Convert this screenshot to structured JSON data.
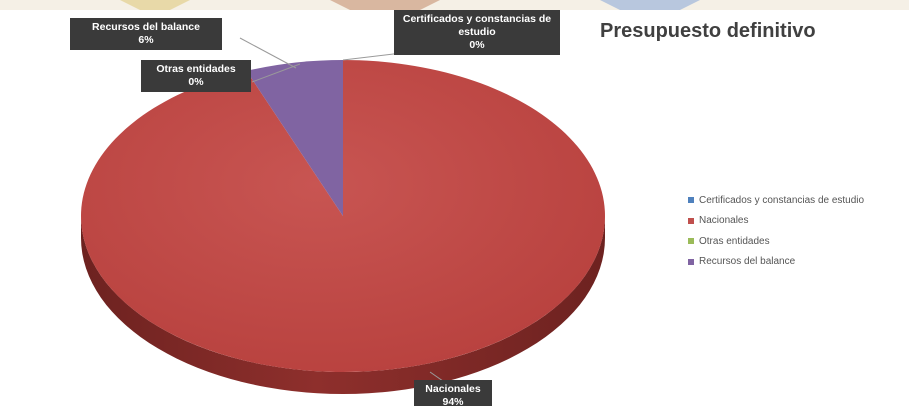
{
  "chart_data": {
    "type": "pie",
    "title": "Presupuesto definitivo",
    "categories": [
      "Certificados y constancias de estudio",
      "Nacionales",
      "Otras entidades",
      "Recursos del balance"
    ],
    "values": [
      0,
      94,
      0,
      6
    ],
    "data_labels": [
      {
        "name": "Certificados y constancias de estudio",
        "pct": "0%"
      },
      {
        "name": "Nacionales",
        "pct": "94%"
      },
      {
        "name": "Otras entidades",
        "pct": "0%"
      },
      {
        "name": "Recursos del balance",
        "pct": "6%"
      }
    ],
    "colors": [
      "#4f81bd",
      "#c0504d",
      "#9bbb59",
      "#8064a2"
    ],
    "legend_position": "right",
    "style": "3d-pie"
  },
  "theme": {
    "background": "#ffffff",
    "label_bg": "#3a3a3a",
    "side_color": "#8e2f2c",
    "side_dark": "#6d2220"
  }
}
